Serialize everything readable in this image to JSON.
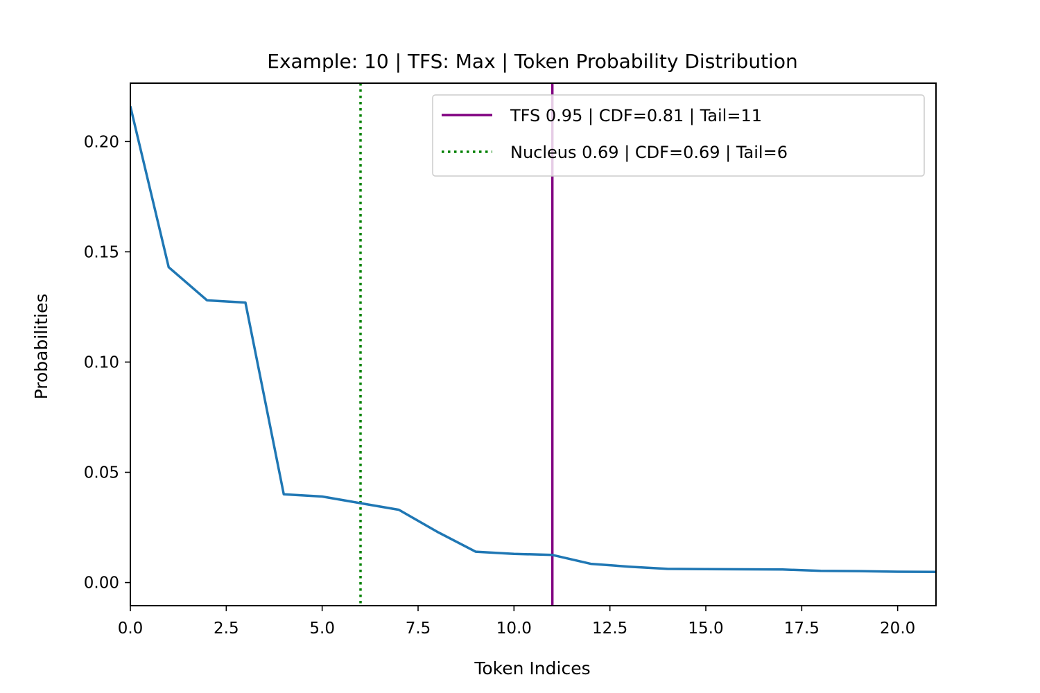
{
  "chart_data": {
    "type": "line",
    "title": "Example: 10 | TFS: Max | Token Probability Distribution",
    "xlabel": "Token Indices",
    "ylabel": "Probabilities",
    "xlim": [
      0,
      21
    ],
    "ylim": [
      -0.0105,
      0.2265
    ],
    "xticks": [
      0,
      2.5,
      5,
      7.5,
      10,
      12.5,
      15,
      17.5,
      20
    ],
    "xtick_labels": [
      "0.0",
      "2.5",
      "5.0",
      "7.5",
      "10.0",
      "12.5",
      "15.0",
      "17.5",
      "20.0"
    ],
    "yticks": [
      0,
      0.05,
      0.1,
      0.15,
      0.2
    ],
    "ytick_labels": [
      "0.00",
      "0.05",
      "0.10",
      "0.15",
      "0.20"
    ],
    "grid": false,
    "legend_position": "top-right",
    "series": [
      {
        "color": "#1f77b4",
        "x": [
          0,
          1,
          2,
          3,
          4,
          5,
          6,
          7,
          8,
          9,
          10,
          11,
          12,
          13,
          14,
          15,
          16,
          17,
          18,
          19,
          20,
          21
        ],
        "y": [
          0.216,
          0.143,
          0.128,
          0.127,
          0.04,
          0.039,
          0.036,
          0.033,
          0.023,
          0.014,
          0.013,
          0.0125,
          0.0085,
          0.0072,
          0.0062,
          0.0061,
          0.006,
          0.0059,
          0.0053,
          0.0052,
          0.0049,
          0.0048
        ]
      }
    ],
    "vlines": [
      {
        "name": "TFS 0.95 | CDF=0.81 | Tail=11",
        "x": 11,
        "color": "#800080",
        "style": "solid"
      },
      {
        "name": "Nucleus 0.69 | CDF=0.69 | Tail=6",
        "x": 6,
        "color": "#008000",
        "style": "dotted"
      }
    ]
  }
}
